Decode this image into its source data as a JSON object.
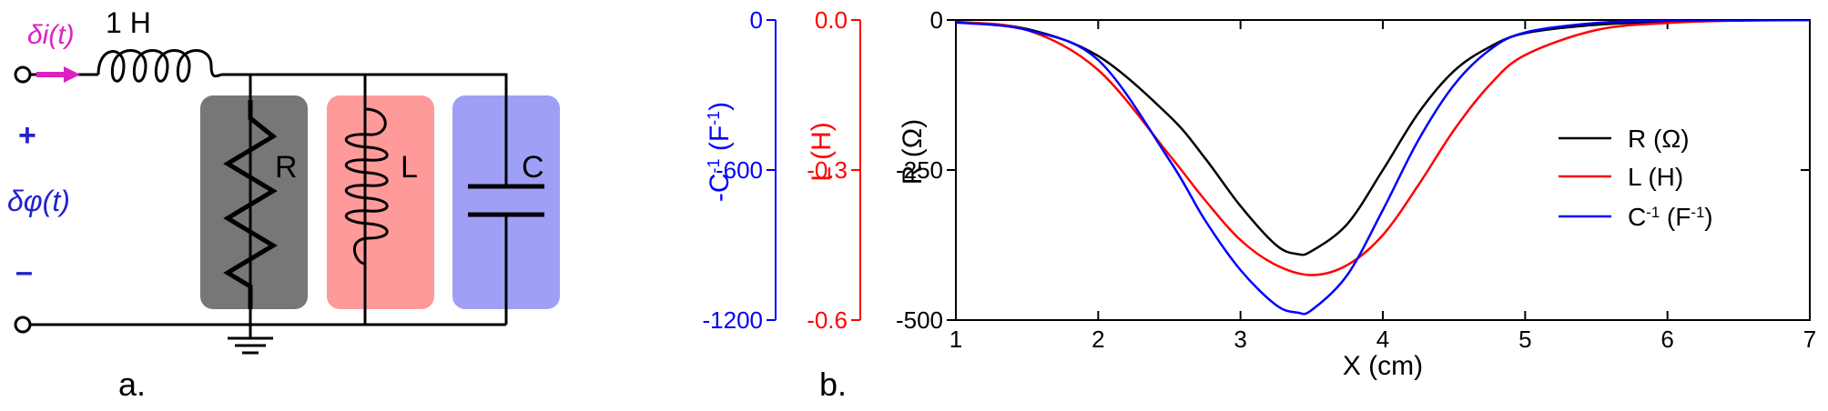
{
  "circuit": {
    "source_label": "δi(t)",
    "series_inductor_label": "1 H",
    "plus": "+",
    "voltage_label": "δφ(t)",
    "minus": "–",
    "r_label": "R",
    "l_label": "L",
    "c_label": "C",
    "panel_label": "a.",
    "colors": {
      "r_box": "#777777",
      "l_box": "#ff9a9a",
      "c_box": "#9f9ff5",
      "source": "#e020c0",
      "polarity": "#2222cc"
    }
  },
  "plot_panel_label": "b.",
  "chart_data": {
    "type": "line",
    "xlabel": "X (cm)",
    "xlim": [
      1,
      7
    ],
    "x_ticks": [
      "1",
      "2",
      "3",
      "4",
      "5",
      "6",
      "7"
    ],
    "axes": [
      {
        "label": "R (Ω)",
        "label_parts": [
          "R (Ω)"
        ],
        "range": [
          -500,
          0
        ],
        "ticks": [
          "0",
          "-250",
          "-500"
        ],
        "color": "#000000"
      },
      {
        "label": "L (H)",
        "label_parts": [
          "L (H)"
        ],
        "range": [
          -0.6,
          0.0
        ],
        "ticks": [
          "0.0",
          "-0.3",
          "-0.6"
        ],
        "color": "#ff0000"
      },
      {
        "label": "-C-1 (F-1)",
        "label_parts": [
          "-C",
          "-1",
          " (F",
          "-1",
          ")"
        ],
        "range": [
          -1200,
          0
        ],
        "ticks": [
          "0",
          "-600",
          "-1200"
        ],
        "color": "#0000ff"
      }
    ],
    "series": [
      {
        "name": "R (Ω)",
        "legend_parts": [
          "R (Ω)"
        ],
        "color": "#000000",
        "x": [
          1.0,
          1.5,
          2.0,
          2.5,
          2.75,
          3.0,
          3.25,
          3.4,
          3.5,
          3.75,
          4.0,
          4.25,
          4.5,
          4.75,
          5.0,
          5.5,
          6.0,
          6.5,
          7.0
        ],
        "y": [
          -3,
          -15,
          -60,
          -160,
          -230,
          -310,
          -375,
          -390,
          -385,
          -340,
          -250,
          -155,
          -85,
          -45,
          -22,
          -8,
          -3,
          -1,
          0
        ]
      },
      {
        "name": "L (H)",
        "legend_parts": [
          "L (H)"
        ],
        "color": "#ff0000",
        "x": [
          1.0,
          1.5,
          2.0,
          2.5,
          2.75,
          3.0,
          3.25,
          3.5,
          3.75,
          4.0,
          4.25,
          4.5,
          4.75,
          5.0,
          5.5,
          6.0,
          6.5,
          7.0
        ],
        "y": [
          -0.004,
          -0.02,
          -0.1,
          -0.27,
          -0.36,
          -0.44,
          -0.49,
          -0.51,
          -0.49,
          -0.43,
          -0.33,
          -0.22,
          -0.13,
          -0.07,
          -0.02,
          -0.006,
          -0.001,
          0
        ]
      },
      {
        "name": "C-1 (F-1)",
        "legend_parts": [
          "C",
          "-1",
          " (F",
          "-1",
          ")"
        ],
        "color": "#0000ff",
        "x": [
          1.0,
          1.5,
          2.0,
          2.5,
          2.75,
          3.0,
          3.25,
          3.4,
          3.5,
          3.75,
          4.0,
          4.25,
          4.5,
          4.75,
          5.0,
          5.5,
          6.0,
          6.5,
          7.0
        ],
        "y": [
          -10,
          -40,
          -160,
          -560,
          -800,
          -1000,
          -1140,
          -1170,
          -1160,
          -1020,
          -760,
          -480,
          -260,
          -120,
          -50,
          -12,
          -3,
          -1,
          0
        ]
      }
    ],
    "legend_position": "right",
    "grid": false
  }
}
